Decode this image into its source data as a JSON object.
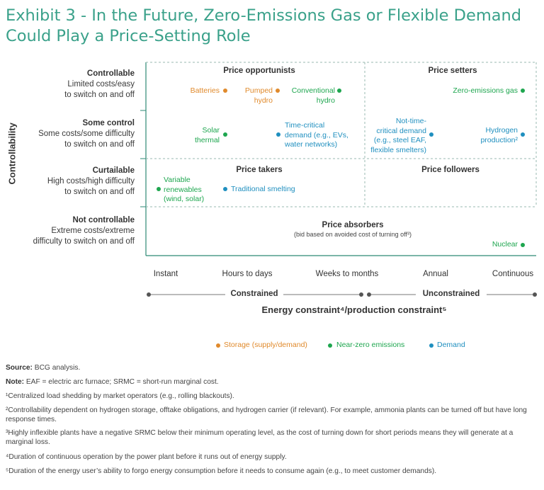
{
  "title": "Exhibit 3 - In the Future, Zero-Emissions Gas or Flexible Demand Could Play a Price-Setting Role",
  "y_axis_label": "Controllability",
  "rows": [
    {
      "heading": "Controllable",
      "sub": [
        "Limited costs/easy",
        "to switch on and off"
      ]
    },
    {
      "heading": "Some control",
      "sub": [
        "Some costs/some difficulty",
        "to switch on and off"
      ]
    },
    {
      "heading": "Curtailable",
      "sub": [
        "High costs/high difficulty",
        "to switch on and off"
      ]
    },
    {
      "heading": "Not controllable",
      "sub": [
        "Extreme costs/extreme",
        "difficulty to switch on and off"
      ]
    }
  ],
  "zones": {
    "price_opportunists": "Price opportunists",
    "price_setters": "Price setters",
    "price_takers": "Price takers",
    "price_followers": "Price followers",
    "price_absorbers": "Price absorbers",
    "price_absorbers_note": "(bid based on avoided cost of turning off³)"
  },
  "items": {
    "batteries": "Batteries",
    "pumped_hydro": [
      "Pumped",
      "hydro"
    ],
    "conventional_hydro": [
      "Conventional",
      "hydro"
    ],
    "zero_emissions_gas": "Zero-emissions gas",
    "solar_thermal": [
      "Solar",
      "thermal"
    ],
    "time_critical": [
      "Time-critical",
      "demand (e.g., EVs,",
      "water networks)"
    ],
    "not_time_critical": [
      "Not-time-",
      "critical demand",
      "(e.g., steel EAF,",
      "flexible smelters)"
    ],
    "hydrogen_production": [
      "Hydrogen",
      "production²"
    ],
    "variable_renewables": [
      "Variable",
      "renewables",
      "(wind, solar)"
    ],
    "traditional_smelting": "Traditional smelting",
    "nuclear": "Nuclear"
  },
  "x_ticks": [
    "Instant",
    "Hours to days",
    "Weeks to months",
    "Annual",
    "Continuous"
  ],
  "constrained": "Constrained",
  "unconstrained": "Unconstrained",
  "x_axis_label": "Energy constraint⁴/production constraint⁵",
  "legend": {
    "storage": "Storage (supply/demand)",
    "near_zero": "Near-zero emissions",
    "demand": "Demand"
  },
  "colors": {
    "title": "#3aa18a",
    "storage": "#e08a2c",
    "near_zero": "#1ea64f",
    "demand": "#1f8fbf"
  },
  "notes": {
    "source_label": "Source:",
    "source_text": "BCG analysis.",
    "note_label": "Note:",
    "note_text": "EAF = electric arc furnace; SRMC = short-run marginal cost.",
    "fn1": "¹Centralized load shedding by market operators (e.g., rolling blackouts).",
    "fn2": "²Controllability dependent on hydrogen storage, offtake obligations, and hydrogen carrier (if relevant). For example, ammonia plants can be turned off but have long response times.",
    "fn3": "³Highly inflexible plants have a negative SRMC below their minimum operating level, as the cost of turning down for short periods means they will generate at a marginal loss.",
    "fn4": "⁴Duration of continuous operation by the power plant before it runs out of energy supply.",
    "fn5": "⁵Duration of the energy user’s ability to forgo energy consumption before it needs to consume again (e.g., to meet customer demands)."
  }
}
